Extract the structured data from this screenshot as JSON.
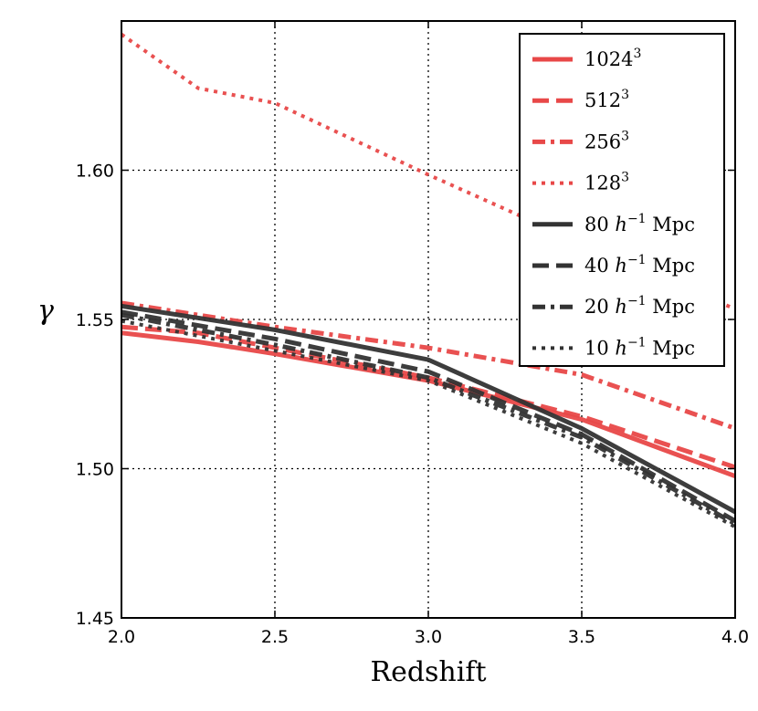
{
  "chart_data": {
    "type": "line",
    "title": "",
    "xlabel": "Redshift",
    "ylabel": "γ",
    "xlim": [
      2.0,
      4.0
    ],
    "ylim": [
      1.45,
      1.65
    ],
    "x_ticks": [
      "2.0",
      "2.5",
      "3.0",
      "3.5",
      "4.0"
    ],
    "y_ticks": [
      "1.45",
      "1.50",
      "1.55",
      "1.60"
    ],
    "grid": true,
    "legend_position": "top-right",
    "series": [
      {
        "name": "1024³",
        "label_base": "1024",
        "label_sup": "3",
        "label_unit": "",
        "color": "#e84848",
        "style": "solid",
        "width": 5,
        "x": [
          2.0,
          2.25,
          2.5,
          3.0,
          3.5,
          4.0
        ],
        "y": [
          1.5455,
          1.5425,
          1.5385,
          1.5295,
          1.5165,
          1.4975
        ]
      },
      {
        "name": "512³",
        "label_base": "512",
        "label_sup": "3",
        "label_unit": "",
        "color": "#e84848",
        "style": "dash",
        "width": 5,
        "x": [
          2.0,
          2.25,
          2.5,
          3.0,
          3.5,
          4.0
        ],
        "y": [
          1.5475,
          1.5455,
          1.5405,
          1.5305,
          1.5175,
          1.5005
        ]
      },
      {
        "name": "256³",
        "label_base": "256",
        "label_sup": "3",
        "label_unit": "",
        "color": "#e84848",
        "style": "dashdot",
        "width": 5,
        "x": [
          2.0,
          2.25,
          2.5,
          3.0,
          3.5,
          4.0
        ],
        "y": [
          1.5555,
          1.5515,
          1.5475,
          1.5405,
          1.5315,
          1.5135
        ]
      },
      {
        "name": "128³",
        "label_base": "128",
        "label_sup": "3",
        "label_unit": "",
        "color": "#e84848",
        "style": "dot",
        "width": 4,
        "x": [
          2.0,
          2.25,
          2.5,
          3.0,
          3.5,
          4.0
        ],
        "y": [
          1.6455,
          1.6275,
          1.6225,
          1.5985,
          1.5755,
          1.5535
        ]
      },
      {
        "name": "80 h⁻¹ Mpc",
        "label_base": "80 h",
        "label_sup": "−1",
        "label_unit": "Mpc",
        "color": "#333333",
        "style": "solid",
        "width": 5,
        "x": [
          2.0,
          2.5,
          3.0,
          3.5,
          4.0
        ],
        "y": [
          1.5545,
          1.5465,
          1.5365,
          1.5135,
          1.4855
        ]
      },
      {
        "name": "40 h⁻¹ Mpc",
        "label_base": "40 h",
        "label_sup": "−1",
        "label_unit": "Mpc",
        "color": "#333333",
        "style": "dash",
        "width": 5,
        "x": [
          2.0,
          2.5,
          3.0,
          3.5,
          4.0
        ],
        "y": [
          1.5525,
          1.5435,
          1.5325,
          1.5115,
          1.4825
        ]
      },
      {
        "name": "20 h⁻¹ Mpc",
        "label_base": "20 h",
        "label_sup": "−1",
        "label_unit": "Mpc",
        "color": "#333333",
        "style": "dashdot",
        "width": 5,
        "x": [
          2.0,
          2.5,
          3.0,
          3.5,
          4.0
        ],
        "y": [
          1.5515,
          1.5415,
          1.5305,
          1.5105,
          1.4815
        ]
      },
      {
        "name": "10 h⁻¹ Mpc",
        "label_base": "10 h",
        "label_sup": "−1",
        "label_unit": "Mpc",
        "color": "#333333",
        "style": "dot",
        "width": 4,
        "x": [
          2.0,
          2.5,
          3.0,
          3.5,
          4.0
        ],
        "y": [
          1.5495,
          1.5395,
          1.5295,
          1.5085,
          1.4805
        ]
      }
    ]
  }
}
